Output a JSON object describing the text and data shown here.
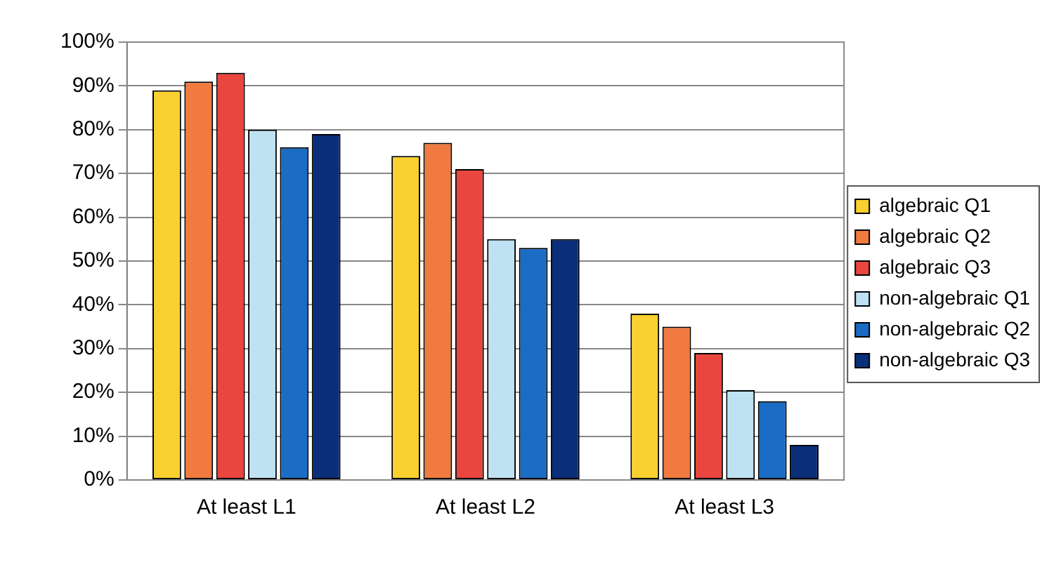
{
  "chart_data": {
    "type": "bar",
    "categories": [
      "At least L1",
      "At least L2",
      "At least L3"
    ],
    "series": [
      {
        "name": "algebraic Q1",
        "color": "#f9d030",
        "values": [
          89,
          74,
          38
        ]
      },
      {
        "name": "algebraic Q2",
        "color": "#f07a40",
        "values": [
          91,
          77,
          35
        ]
      },
      {
        "name": "algebraic Q3",
        "color": "#e8463e",
        "values": [
          93,
          71,
          29
        ]
      },
      {
        "name": "non-algebraic Q1",
        "color": "#bfe2f2",
        "values": [
          80,
          55,
          20.5
        ]
      },
      {
        "name": "non-algebraic Q2",
        "color": "#1a6cc4",
        "values": [
          76,
          53,
          18
        ]
      },
      {
        "name": "non-algebraic Q3",
        "color": "#0a2f7a",
        "values": [
          79,
          55,
          8
        ]
      }
    ],
    "ylim": [
      0,
      100
    ],
    "yticks": [
      {
        "value": 0,
        "label": "0%"
      },
      {
        "value": 10,
        "label": "10%"
      },
      {
        "value": 20,
        "label": "20%"
      },
      {
        "value": 30,
        "label": "30%"
      },
      {
        "value": 40,
        "label": "40%"
      },
      {
        "value": 50,
        "label": "50%"
      },
      {
        "value": 60,
        "label": "60%"
      },
      {
        "value": 70,
        "label": "70%"
      },
      {
        "value": 80,
        "label": "80%"
      },
      {
        "value": 90,
        "label": "90%"
      },
      {
        "value": 100,
        "label": "100%"
      }
    ],
    "grid": "y",
    "legend": "right"
  }
}
